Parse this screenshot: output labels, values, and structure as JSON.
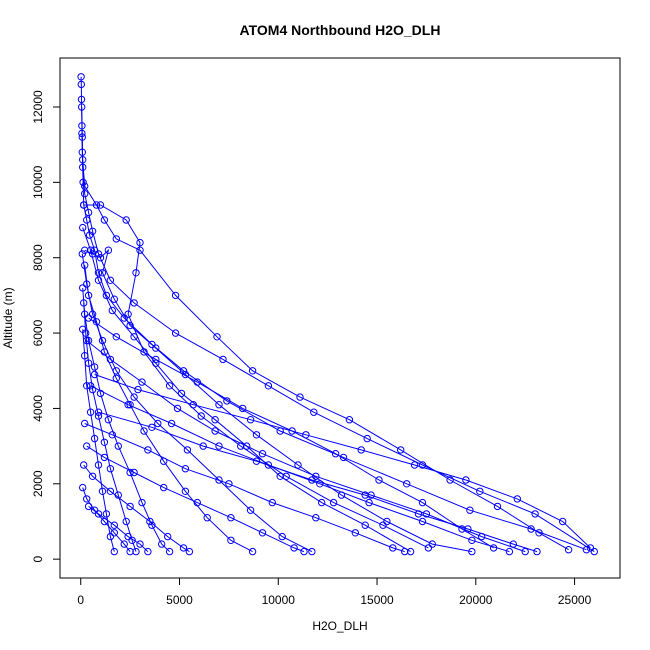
{
  "chart_data": {
    "type": "scatter",
    "title": "ATOM4 Northbound H2O_DLH",
    "xlabel": "H2O_DLH",
    "ylabel": "Altitude (m)",
    "xlim": [
      -1050,
      27300
    ],
    "ylim": [
      -500,
      13300
    ],
    "x_ticks": [
      0,
      5000,
      10000,
      15000,
      20000,
      25000
    ],
    "y_ticks": [
      0,
      2000,
      4000,
      6000,
      8000,
      10000,
      12000
    ],
    "grid": false,
    "color": "#0000ff",
    "marker": "open-circle",
    "lines": "connected",
    "series": [
      {
        "values": [
          [
            20,
            12800
          ],
          [
            30,
            12600
          ],
          [
            40,
            12200
          ],
          [
            60,
            11500
          ],
          [
            80,
            10800
          ],
          [
            120,
            10000
          ],
          [
            150,
            9400
          ],
          [
            300,
            9000
          ],
          [
            450,
            8600
          ],
          [
            700,
            8200
          ],
          [
            900,
            7600
          ],
          [
            1300,
            7000
          ],
          [
            2200,
            6400
          ],
          [
            3600,
            5700
          ],
          [
            5200,
            5000
          ],
          [
            7400,
            4200
          ],
          [
            10100,
            3400
          ],
          [
            13300,
            2700
          ],
          [
            16500,
            2000
          ],
          [
            19700,
            1300
          ],
          [
            22800,
            800
          ],
          [
            25600,
            250
          ]
        ]
      },
      {
        "values": [
          [
            50,
            12000
          ],
          [
            80,
            11200
          ],
          [
            100,
            10400
          ],
          [
            200,
            9700
          ],
          [
            400,
            9200
          ],
          [
            600,
            8700
          ],
          [
            900,
            8100
          ],
          [
            1500,
            7400
          ],
          [
            2700,
            6800
          ],
          [
            4800,
            6000
          ],
          [
            7200,
            5300
          ],
          [
            9500,
            4600
          ],
          [
            11800,
            3900
          ],
          [
            14500,
            3200
          ],
          [
            17300,
            2500
          ],
          [
            20200,
            1800
          ],
          [
            23000,
            1200
          ],
          [
            26000,
            200
          ]
        ]
      },
      {
        "values": [
          [
            60,
            11300
          ],
          [
            100,
            10600
          ],
          [
            200,
            9900
          ],
          [
            800,
            9400
          ],
          [
            1200,
            9000
          ],
          [
            1800,
            8500
          ],
          [
            3000,
            8200
          ],
          [
            4800,
            7000
          ],
          [
            6900,
            5900
          ],
          [
            8700,
            5000
          ],
          [
            11100,
            4300
          ],
          [
            13600,
            3700
          ],
          [
            16200,
            2900
          ],
          [
            18700,
            2100
          ],
          [
            21100,
            1400
          ],
          [
            23200,
            700
          ],
          [
            24700,
            250
          ]
        ]
      },
      {
        "values": [
          [
            150,
            9400
          ],
          [
            1000,
            9400
          ],
          [
            2300,
            9000
          ],
          [
            3000,
            8400
          ],
          [
            2800,
            7600
          ],
          [
            2400,
            6500
          ],
          [
            3200,
            5500
          ],
          [
            4500,
            4600
          ],
          [
            6100,
            3800
          ],
          [
            8100,
            3000
          ],
          [
            10400,
            2200
          ],
          [
            12800,
            1500
          ],
          [
            15300,
            900
          ],
          [
            17600,
            300
          ]
        ]
      },
      {
        "values": [
          [
            100,
            8800
          ],
          [
            500,
            8200
          ],
          [
            900,
            7400
          ],
          [
            1600,
            6600
          ],
          [
            2700,
            5900
          ],
          [
            3800,
            5200
          ],
          [
            5100,
            4400
          ],
          [
            6800,
            3700
          ],
          [
            8400,
            3000
          ],
          [
            10100,
            2200
          ],
          [
            12200,
            1500
          ],
          [
            14400,
            900
          ],
          [
            16700,
            200
          ]
        ]
      },
      {
        "values": [
          [
            80,
            8100
          ],
          [
            300,
            7300
          ],
          [
            600,
            6500
          ],
          [
            1100,
            5800
          ],
          [
            1800,
            5000
          ],
          [
            2700,
            4300
          ],
          [
            3900,
            3600
          ],
          [
            5400,
            2900
          ],
          [
            7000,
            2100
          ],
          [
            8600,
            1300
          ],
          [
            10200,
            600
          ],
          [
            11700,
            200
          ]
        ]
      },
      {
        "values": [
          [
            200,
            7800
          ],
          [
            400,
            7000
          ],
          [
            800,
            6300
          ],
          [
            1200,
            5500
          ],
          [
            1800,
            4800
          ],
          [
            2500,
            4100
          ],
          [
            3200,
            3400
          ],
          [
            4200,
            2600
          ],
          [
            5300,
            1800
          ],
          [
            6400,
            1100
          ],
          [
            7600,
            500
          ],
          [
            8700,
            200
          ]
        ]
      },
      {
        "values": [
          [
            100,
            7200
          ],
          [
            200,
            6500
          ],
          [
            400,
            5800
          ],
          [
            700,
            5100
          ],
          [
            1000,
            4400
          ],
          [
            1400,
            3700
          ],
          [
            1900,
            3000
          ],
          [
            2500,
            2300
          ],
          [
            3100,
            1500
          ],
          [
            3600,
            900
          ],
          [
            4100,
            400
          ],
          [
            4500,
            200
          ]
        ]
      },
      {
        "values": [
          [
            150,
            6800
          ],
          [
            250,
            6000
          ],
          [
            400,
            5200
          ],
          [
            600,
            4500
          ],
          [
            900,
            3800
          ],
          [
            1200,
            3100
          ],
          [
            1500,
            2400
          ],
          [
            1900,
            1700
          ],
          [
            2300,
            1000
          ],
          [
            2600,
            500
          ],
          [
            2800,
            200
          ]
        ]
      },
      {
        "values": [
          [
            100,
            6100
          ],
          [
            200,
            5400
          ],
          [
            300,
            4600
          ],
          [
            500,
            3900
          ],
          [
            700,
            3200
          ],
          [
            900,
            2500
          ],
          [
            1100,
            1800
          ],
          [
            1300,
            1200
          ],
          [
            1500,
            600
          ],
          [
            1700,
            200
          ]
        ]
      },
      {
        "values": [
          [
            200,
            8200
          ],
          [
            600,
            8100
          ],
          [
            1000,
            8000
          ],
          [
            1400,
            8200
          ],
          [
            1100,
            7600
          ],
          [
            1700,
            6900
          ],
          [
            2500,
            6200
          ],
          [
            3800,
            5600
          ],
          [
            5300,
            4900
          ],
          [
            7000,
            4100
          ],
          [
            8900,
            3300
          ],
          [
            11000,
            2500
          ],
          [
            13200,
            1700
          ],
          [
            15500,
            1000
          ],
          [
            17800,
            400
          ],
          [
            19800,
            200
          ]
        ]
      },
      {
        "values": [
          [
            300,
            5800
          ],
          [
            1500,
            5300
          ],
          [
            3100,
            4700
          ],
          [
            4900,
            4000
          ],
          [
            6800,
            3400
          ],
          [
            9200,
            2800
          ],
          [
            11900,
            2200
          ],
          [
            14700,
            1700
          ],
          [
            17500,
            1200
          ],
          [
            20300,
            600
          ],
          [
            22500,
            200
          ]
        ]
      },
      {
        "values": [
          [
            500,
            4600
          ],
          [
            2400,
            4100
          ],
          [
            4600,
            3600
          ],
          [
            7000,
            3000
          ],
          [
            9500,
            2500
          ],
          [
            12100,
            2000
          ],
          [
            14600,
            1500
          ],
          [
            17300,
            1000
          ],
          [
            19800,
            500
          ],
          [
            21700,
            200
          ]
        ]
      },
      {
        "values": [
          [
            200,
            3600
          ],
          [
            1600,
            3300
          ],
          [
            3400,
            2900
          ],
          [
            5300,
            2400
          ],
          [
            7500,
            2000
          ],
          [
            9700,
            1500
          ],
          [
            11900,
            1100
          ],
          [
            13900,
            700
          ],
          [
            15800,
            300
          ],
          [
            16400,
            200
          ]
        ]
      },
      {
        "values": [
          [
            300,
            3000
          ],
          [
            1200,
            2700
          ],
          [
            2700,
            2300
          ],
          [
            4200,
            1900
          ],
          [
            5900,
            1500
          ],
          [
            7600,
            1100
          ],
          [
            9200,
            700
          ],
          [
            10800,
            300
          ],
          [
            11300,
            200
          ]
        ]
      },
      {
        "values": [
          [
            150,
            2500
          ],
          [
            600,
            2200
          ],
          [
            1500,
            1800
          ],
          [
            2500,
            1400
          ],
          [
            3500,
            1000
          ],
          [
            4400,
            600
          ],
          [
            5200,
            300
          ],
          [
            5500,
            200
          ]
        ]
      },
      {
        "values": [
          [
            100,
            1900
          ],
          [
            300,
            1600
          ],
          [
            700,
            1300
          ],
          [
            1200,
            1000
          ],
          [
            1700,
            700
          ],
          [
            2200,
            400
          ],
          [
            2500,
            200
          ]
        ]
      },
      {
        "values": [
          [
            400,
            1400
          ],
          [
            900,
            1200
          ],
          [
            1700,
            900
          ],
          [
            2400,
            600
          ],
          [
            3000,
            400
          ],
          [
            3400,
            200
          ]
        ]
      },
      {
        "values": [
          [
            700,
            4900
          ],
          [
            2900,
            4500
          ],
          [
            5700,
            4100
          ],
          [
            8600,
            3700
          ],
          [
            11400,
            3300
          ],
          [
            14200,
            2900
          ],
          [
            16900,
            2500
          ],
          [
            19500,
            2100
          ],
          [
            22100,
            1600
          ],
          [
            24400,
            1000
          ],
          [
            25800,
            300
          ]
        ]
      },
      {
        "values": [
          [
            900,
            3900
          ],
          [
            3600,
            3500
          ],
          [
            6200,
            3000
          ],
          [
            8900,
            2600
          ],
          [
            11700,
            2100
          ],
          [
            14400,
            1700
          ],
          [
            17100,
            1200
          ],
          [
            19600,
            800
          ],
          [
            21900,
            400
          ],
          [
            23100,
            200
          ]
        ]
      },
      {
        "values": [
          [
            400,
            6400
          ],
          [
            1800,
            5900
          ],
          [
            3800,
            5300
          ],
          [
            5900,
            4700
          ],
          [
            8200,
            4000
          ],
          [
            10700,
            3400
          ],
          [
            12900,
            2800
          ],
          [
            15100,
            2100
          ],
          [
            17300,
            1500
          ],
          [
            19300,
            800
          ],
          [
            20900,
            300
          ]
        ]
      }
    ]
  }
}
